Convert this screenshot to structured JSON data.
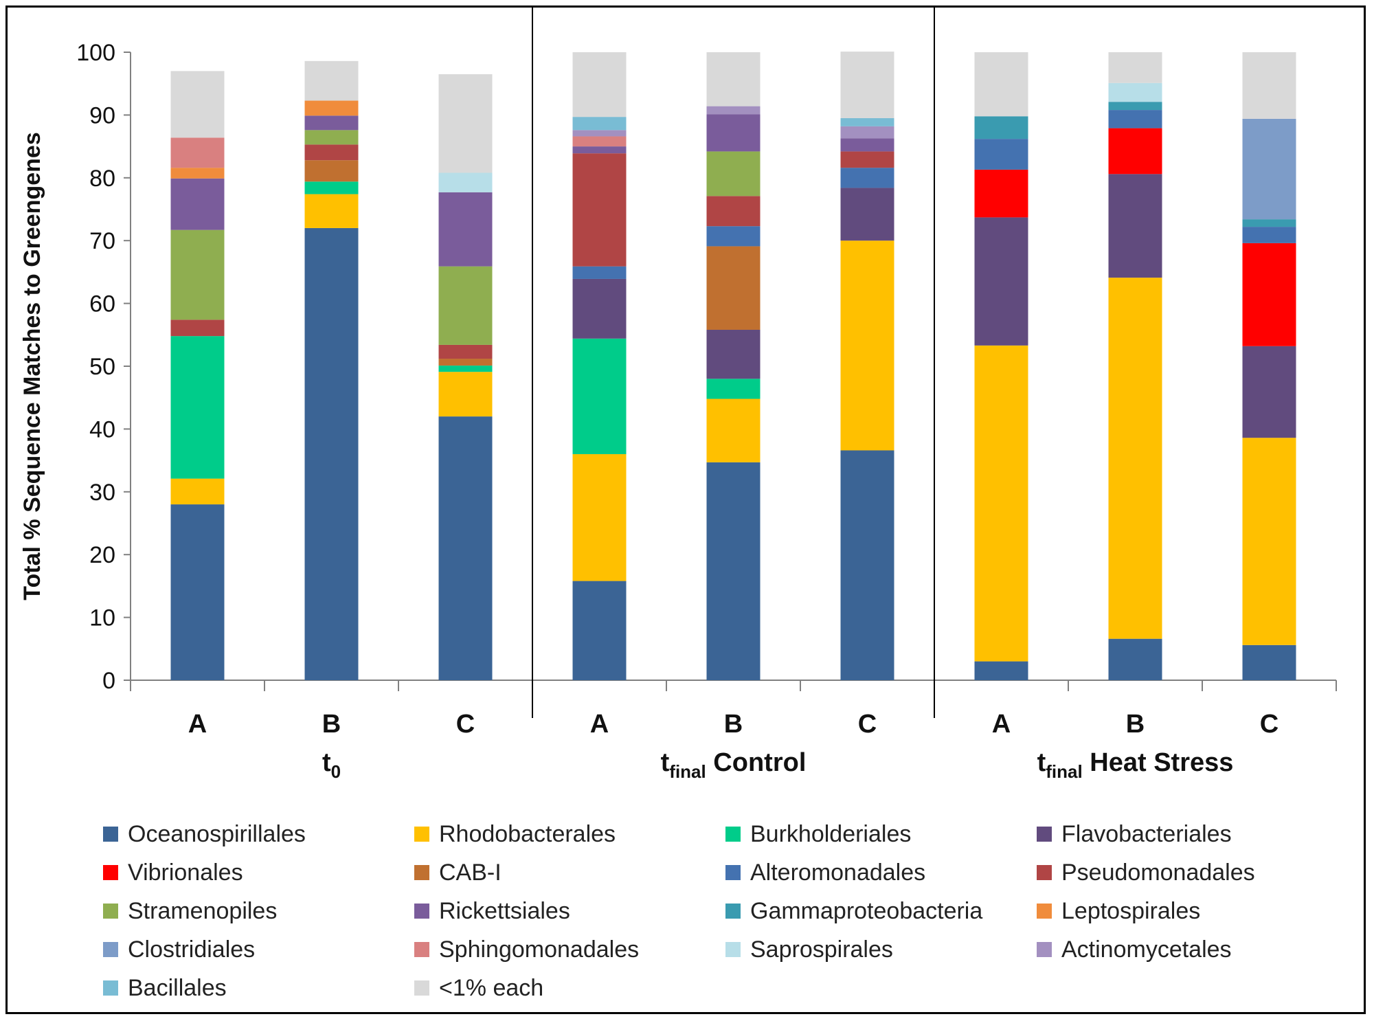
{
  "chart_data": {
    "type": "stacked-bar",
    "ylabel": "Total % Sequence Matches to Greengenes",
    "xlabel": "",
    "ylim": [
      0,
      100
    ],
    "yticks": [
      0,
      10,
      20,
      30,
      40,
      50,
      60,
      70,
      80,
      90,
      100
    ],
    "groups": [
      {
        "label": "t",
        "sub": "0",
        "suffix": ""
      },
      {
        "label": "t",
        "sub": "final",
        "suffix": " Control"
      },
      {
        "label": "t",
        "sub": "final",
        "suffix": " Heat Stress"
      }
    ],
    "categories": [
      "A",
      "B",
      "C",
      "A",
      "B",
      "C",
      "A",
      "B",
      "C"
    ],
    "series": [
      {
        "name": "Oceanospirillales",
        "color": "#3b6495",
        "values": [
          28,
          72,
          42,
          15.8,
          34.7,
          36.6,
          3,
          6.6,
          5.6
        ]
      },
      {
        "name": "Rhodobacterales",
        "color": "#ffc000",
        "values": [
          4.1,
          5.4,
          7.1,
          20.2,
          10.1,
          33.4,
          50.3,
          57.5,
          33
        ]
      },
      {
        "name": "Burkholderiales",
        "color": "#00cc8a",
        "values": [
          22.7,
          2,
          1,
          18.4,
          3.2,
          0,
          0,
          0,
          0
        ]
      },
      {
        "name": "Flavobacteriales",
        "color": "#614b7e",
        "values": [
          0,
          0,
          0,
          9.5,
          7.8,
          8.4,
          20.4,
          16.5,
          14.6
        ]
      },
      {
        "name": "Vibrionales",
        "color": "#ff0000",
        "values": [
          0,
          0,
          0,
          0,
          0,
          0,
          7.6,
          7.3,
          16.4
        ]
      },
      {
        "name": "CAB-I",
        "color": "#c07030",
        "values": [
          0,
          3.4,
          1.1,
          0,
          13.3,
          0,
          0,
          0,
          0
        ]
      },
      {
        "name": "Alteromonadales",
        "color": "#4472b0",
        "values": [
          0,
          0,
          0,
          2,
          3.2,
          3.2,
          4.9,
          2.9,
          2.6
        ]
      },
      {
        "name": "Pseudomonadales",
        "color": "#b04545",
        "values": [
          2.6,
          2.5,
          2.2,
          18,
          4.8,
          2.6,
          0,
          0,
          0
        ]
      },
      {
        "name": "Stramenopiles",
        "color": "#8fae50",
        "values": [
          14.3,
          2.3,
          12.5,
          0,
          7.1,
          0,
          0,
          0,
          0
        ]
      },
      {
        "name": "Rickettsiales",
        "color": "#7a5c9b",
        "values": [
          8.2,
          2.3,
          11.8,
          1.1,
          5.9,
          2.1,
          0,
          0,
          0
        ]
      },
      {
        "name": "Gammaproteobacteria",
        "color": "#3a9bb0",
        "values": [
          0,
          0,
          0,
          0,
          0,
          0,
          3.6,
          1.3,
          1.2
        ]
      },
      {
        "name": "Leptospirales",
        "color": "#f08c3c",
        "values": [
          1.7,
          2.4,
          0,
          0,
          0,
          0,
          0,
          0,
          0
        ]
      },
      {
        "name": "Clostridiales",
        "color": "#7d9cc8",
        "values": [
          0,
          0,
          0,
          0,
          0,
          0,
          0,
          0,
          16
        ]
      },
      {
        "name": "Sphingomonadales",
        "color": "#d98080",
        "values": [
          4.8,
          0,
          0,
          1.6,
          0,
          0,
          0,
          0,
          0
        ]
      },
      {
        "name": "Saprospirales",
        "color": "#b7dee8",
        "values": [
          0,
          0,
          3.1,
          0,
          0,
          0,
          0,
          3,
          0
        ]
      },
      {
        "name": "Actinomycetales",
        "color": "#a390c0",
        "values": [
          0,
          0,
          0,
          1,
          1.3,
          1.9,
          0,
          0,
          0
        ]
      },
      {
        "name": "Bacillales",
        "color": "#79bcd4",
        "values": [
          0,
          0,
          0,
          2.1,
          0,
          1.3,
          0,
          0,
          0
        ]
      },
      {
        "name": "<1% each",
        "color": "#d9d9d9",
        "values": [
          10.6,
          6.3,
          15.7,
          10.3,
          8.6,
          10.6,
          10.2,
          4.9,
          10.6
        ]
      }
    ]
  }
}
